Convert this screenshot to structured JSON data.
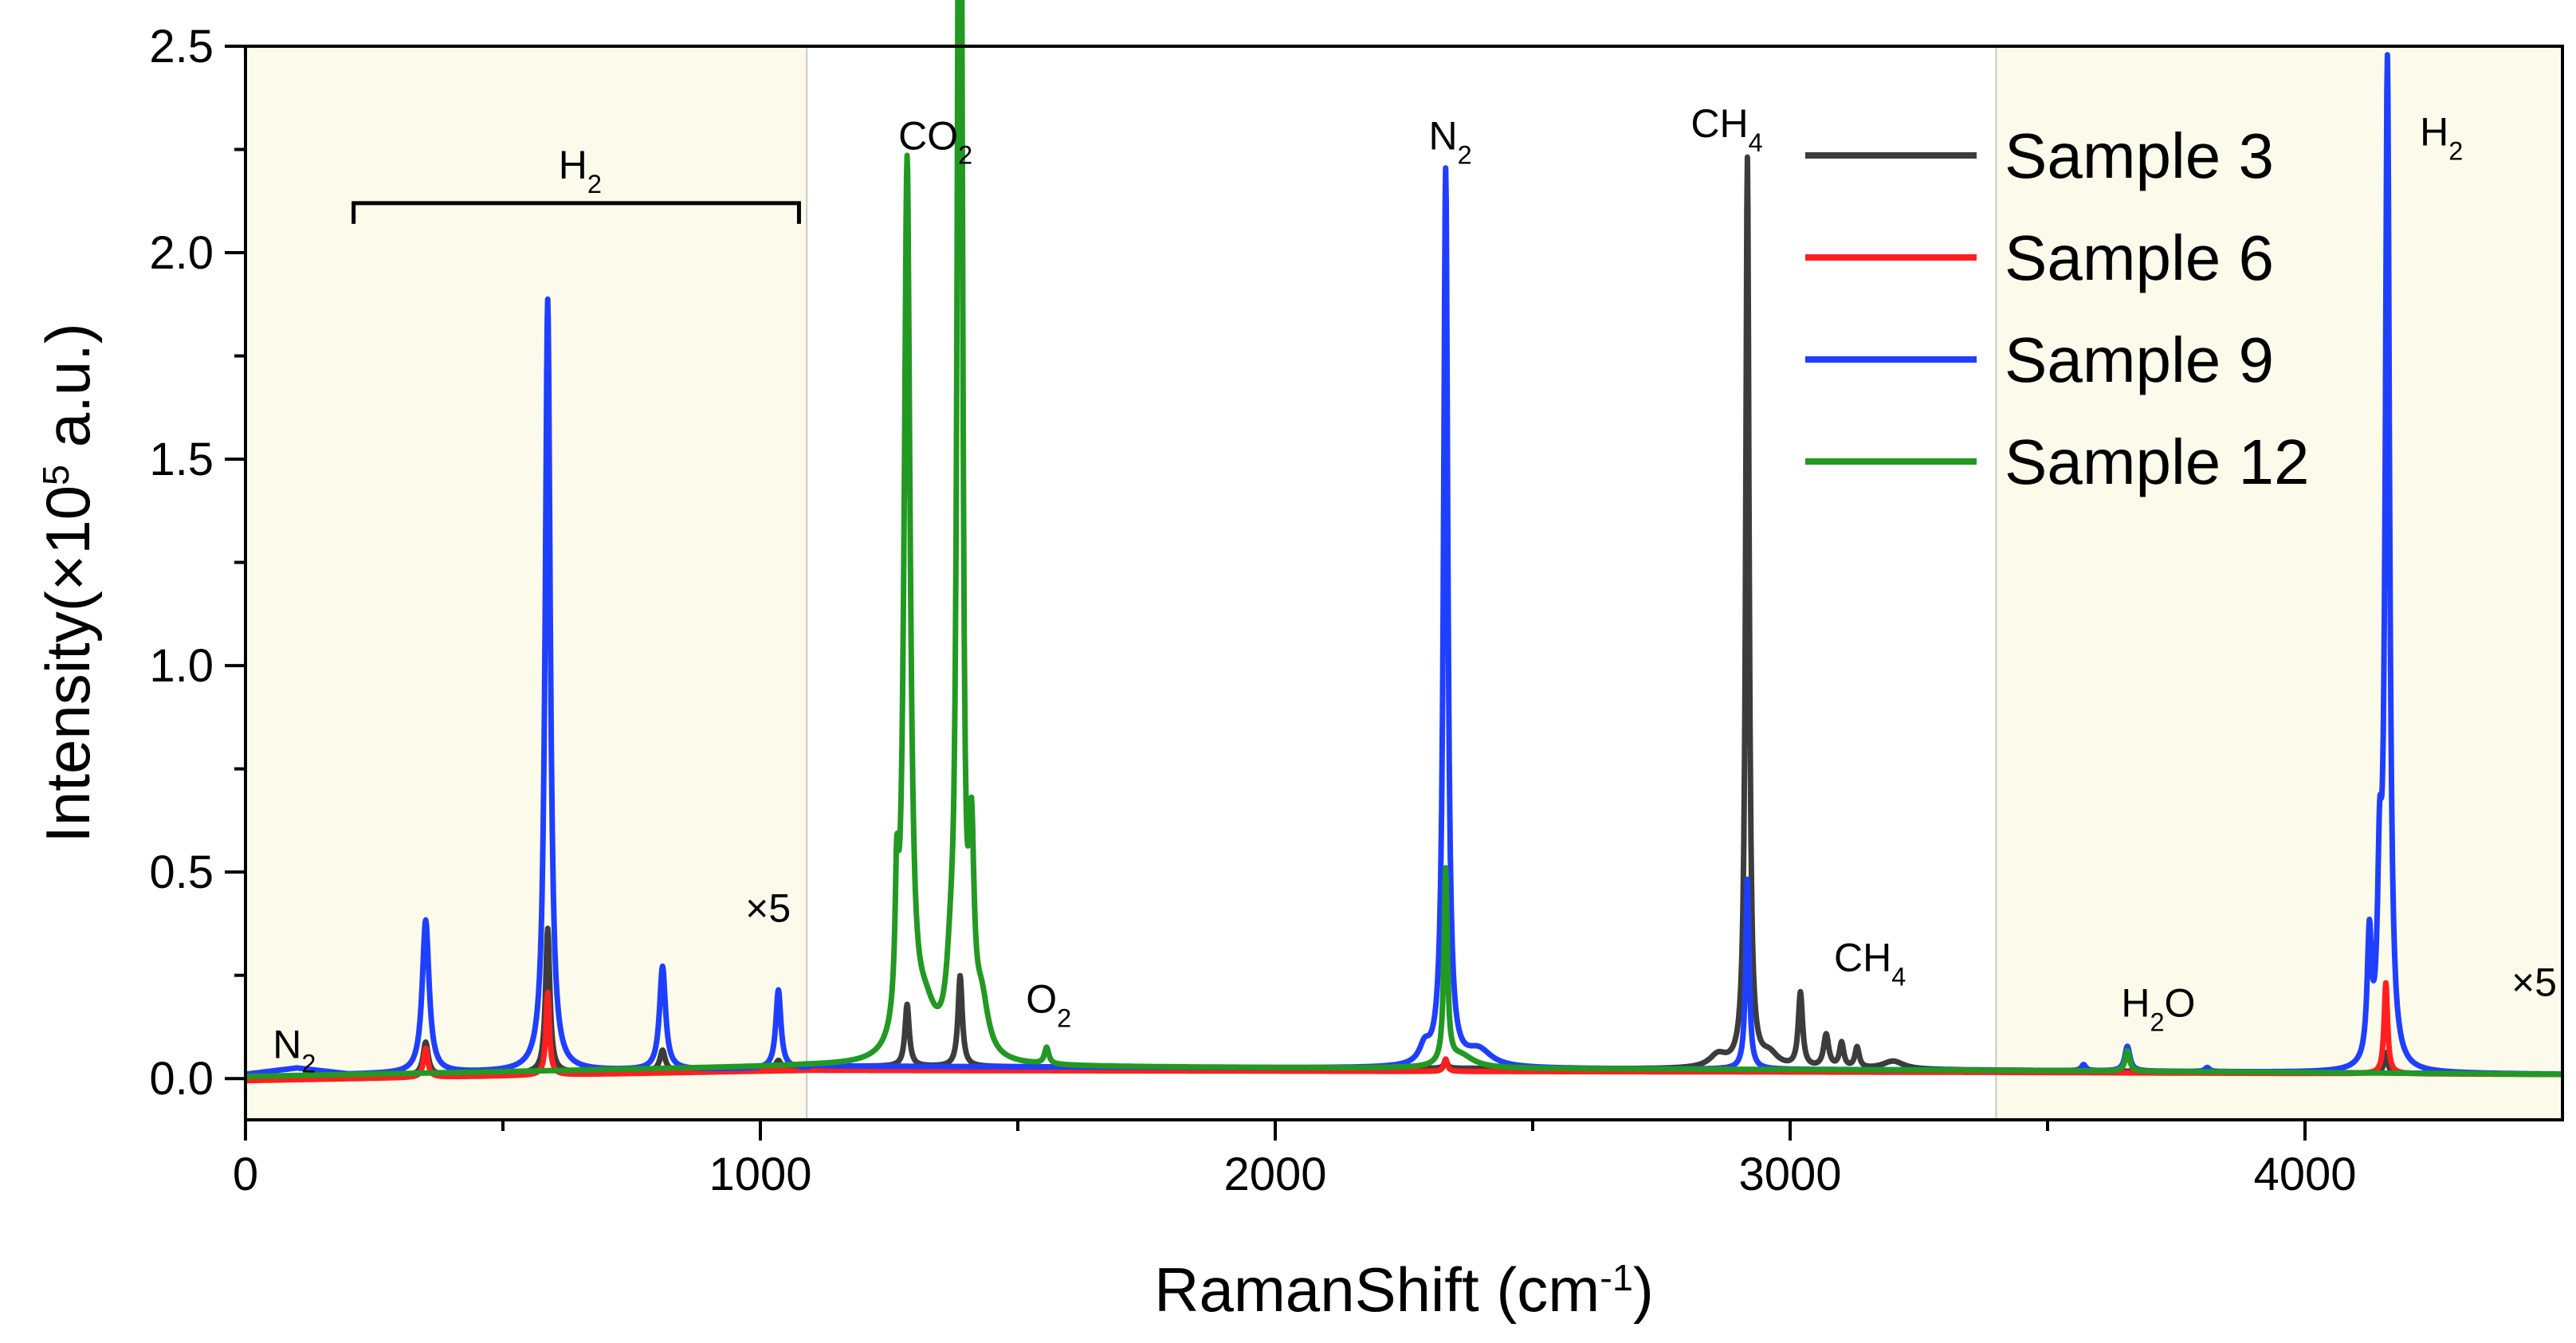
{
  "chart_data": {
    "type": "line",
    "title": "",
    "xlabel": {
      "base": "RamanShift (cm",
      "sup": "-1",
      "tail": ")"
    },
    "ylabel": {
      "base": "Intensity(×10",
      "sup": "5",
      "tail": " a.u.)"
    },
    "xlim": [
      0,
      4500
    ],
    "ylim": [
      -0.1,
      2.5
    ],
    "xticks": [
      0,
      1000,
      2000,
      3000,
      4000
    ],
    "xtick_labels": [
      "0",
      "1000",
      "2000",
      "3000",
      "4000"
    ],
    "yticks": [
      0.0,
      0.5,
      1.0,
      1.5,
      2.0,
      2.5
    ],
    "ytick_labels": [
      "0.0",
      "0.5",
      "1.0",
      "1.5",
      "2.0",
      "2.5"
    ],
    "shaded_regions": [
      {
        "x0": 0,
        "x1": 1090,
        "color": "#fcfbeb",
        "note": "×5"
      },
      {
        "x0": 3400,
        "x1": 4500,
        "color": "#fcfbeb",
        "note": "×5"
      }
    ],
    "legend": {
      "position": "top-right"
    },
    "colors": {
      "shade": "#fcfbeb",
      "divider": "#c8c8c8"
    },
    "series": [
      {
        "name": "Sample 3",
        "color": "#3c3c3c",
        "baseline": [
          [
            0,
            0.0
          ],
          [
            1090,
            0.025
          ],
          [
            1100,
            0.03
          ],
          [
            3400,
            0.02
          ],
          [
            4500,
            0.01
          ]
        ],
        "peaks": [
          [
            350,
            0.08,
            6
          ],
          [
            587,
            0.35,
            5
          ],
          [
            810,
            0.05,
            6
          ],
          [
            1035,
            0.02,
            6
          ],
          [
            1285,
            0.15,
            5
          ],
          [
            1388,
            0.22,
            5
          ],
          [
            2331,
            0.02,
            4
          ],
          [
            2917,
            2.2,
            4
          ],
          [
            3020,
            0.18,
            5
          ],
          [
            3070,
            0.08,
            6
          ],
          [
            3100,
            0.06,
            5
          ],
          [
            3130,
            0.05,
            5
          ],
          [
            2860,
            0.03,
            20
          ],
          [
            2960,
            0.03,
            20
          ],
          [
            3200,
            0.02,
            25
          ],
          [
            4157,
            0.05,
            4
          ]
        ]
      },
      {
        "name": "Sample 6",
        "color": "#ff1f1f",
        "baseline": [
          [
            0,
            -0.005
          ],
          [
            1090,
            0.02
          ],
          [
            1100,
            0.02
          ],
          [
            3400,
            0.015
          ],
          [
            4500,
            0.01
          ]
        ],
        "peaks": [
          [
            350,
            0.07,
            5
          ],
          [
            587,
            0.2,
            4
          ],
          [
            2331,
            0.03,
            4
          ],
          [
            4157,
            0.22,
            4
          ]
        ]
      },
      {
        "name": "Sample 9",
        "color": "#1f3fff",
        "baseline": [
          [
            0,
            0.01
          ],
          [
            100,
            0.025
          ],
          [
            200,
            0.01
          ],
          [
            1090,
            0.025
          ],
          [
            1100,
            0.03
          ],
          [
            3400,
            0.02
          ],
          [
            4500,
            0.01
          ]
        ],
        "peaks": [
          [
            350,
            0.37,
            8
          ],
          [
            587,
            1.87,
            6
          ],
          [
            810,
            0.25,
            7
          ],
          [
            1035,
            0.19,
            6
          ],
          [
            2331,
            2.17,
            5
          ],
          [
            2290,
            0.04,
            12
          ],
          [
            2395,
            0.04,
            30
          ],
          [
            2917,
            0.46,
            4
          ],
          [
            3655,
            0.06,
            6
          ],
          [
            3570,
            0.015,
            5
          ],
          [
            3810,
            0.01,
            5
          ],
          [
            4125,
            0.3,
            5
          ],
          [
            4145,
            0.4,
            5
          ],
          [
            4160,
            2.42,
            5
          ]
        ]
      },
      {
        "name": "Sample 12",
        "color": "#229922",
        "baseline": [
          [
            0,
            0.005
          ],
          [
            1090,
            0.03
          ],
          [
            1100,
            0.03
          ],
          [
            3400,
            0.02
          ],
          [
            4500,
            0.01
          ]
        ],
        "peaks": [
          [
            1265,
            0.3,
            4
          ],
          [
            1285,
            2.15,
            7
          ],
          [
            1320,
            0.1,
            25
          ],
          [
            1370,
            0.15,
            10
          ],
          [
            1385,
            2.15,
            4
          ],
          [
            1390,
            2.15,
            4
          ],
          [
            1410,
            0.45,
            6
          ],
          [
            1430,
            0.12,
            15
          ],
          [
            1556,
            0.04,
            5
          ],
          [
            2331,
            0.47,
            4
          ],
          [
            2360,
            0.03,
            30
          ],
          [
            3655,
            0.05,
            5
          ]
        ]
      }
    ],
    "annotations": [
      {
        "id": "n2-low",
        "x": 95,
        "y": 0.05,
        "base": "N",
        "sub": "2"
      },
      {
        "id": "h2-bracket",
        "x": 650,
        "y": 2.18,
        "base": "H",
        "sub": "2"
      },
      {
        "id": "x5-left",
        "x": 1015,
        "y": 0.38,
        "base": "×5",
        "sub": ""
      },
      {
        "id": "co2",
        "x": 1340,
        "y": 2.25,
        "base": "CO",
        "sub": "2"
      },
      {
        "id": "o2",
        "x": 1560,
        "y": 0.16,
        "base": "O",
        "sub": "2"
      },
      {
        "id": "n2-high",
        "x": 2340,
        "y": 2.25,
        "base": "N",
        "sub": "2"
      },
      {
        "id": "ch4-high",
        "x": 2877,
        "y": 2.28,
        "base": "CH",
        "sub": "4"
      },
      {
        "id": "ch4-low",
        "x": 3155,
        "y": 0.26,
        "base": "CH",
        "sub": "4"
      },
      {
        "id": "h2o",
        "x": 3715,
        "y": 0.15,
        "base": "H",
        "sub": "2",
        "tail": "O"
      },
      {
        "id": "h2-high",
        "x": 4265,
        "y": 2.26,
        "base": "H",
        "sub": "2"
      },
      {
        "id": "x5-right",
        "x": 4445,
        "y": 0.2,
        "base": "×5",
        "sub": ""
      }
    ],
    "bracket": {
      "x0": 210,
      "x1": 1075,
      "y": 2.12
    }
  }
}
